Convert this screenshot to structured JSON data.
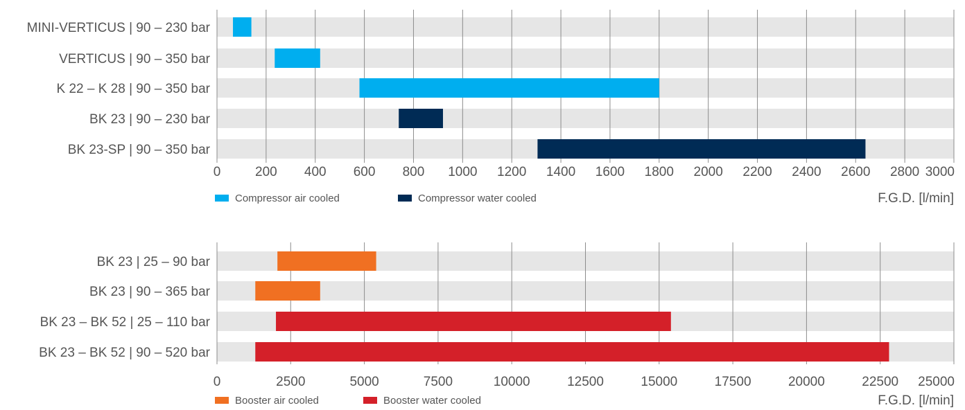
{
  "chart_data": [
    {
      "type": "bar",
      "orientation": "horizontal-range",
      "categories": [
        "MINI-VERTICUS | 90 – 230 bar",
        "VERTICUS | 90 – 350 bar",
        "K 22 – K 28 | 90 – 350 bar",
        "BK 23 | 90 – 230 bar",
        "BK 23-SP | 90 – 350 bar"
      ],
      "bars": [
        {
          "start": 65,
          "end": 140,
          "series": 0
        },
        {
          "start": 235,
          "end": 420,
          "series": 0
        },
        {
          "start": 580,
          "end": 1800,
          "series": 0
        },
        {
          "start": 740,
          "end": 920,
          "series": 1
        },
        {
          "start": 1305,
          "end": 2640,
          "series": 1
        }
      ],
      "series": [
        {
          "name": "Compressor air cooled",
          "color": "#00aeef"
        },
        {
          "name": "Compressor water cooled",
          "color": "#002b55"
        }
      ],
      "xlabel": "F.G.D. [l/min]",
      "xlim": [
        0,
        3000
      ],
      "xticks": [
        0,
        200,
        400,
        600,
        800,
        1000,
        1200,
        1400,
        1600,
        1800,
        2000,
        2200,
        2400,
        2600,
        2800,
        3000
      ],
      "grid": "vertical",
      "legend": "bottom-left"
    },
    {
      "type": "bar",
      "orientation": "horizontal-range",
      "categories": [
        "BK 23 | 25 – 90 bar",
        "BK 23 | 90 – 365 bar",
        "BK 23 – BK 52 | 25 – 110 bar",
        "BK 23 – BK 52 | 90 – 520 bar"
      ],
      "bars": [
        {
          "start": 2050,
          "end": 5400,
          "series": 0
        },
        {
          "start": 1300,
          "end": 3500,
          "series": 0
        },
        {
          "start": 2000,
          "end": 15400,
          "series": 1
        },
        {
          "start": 1300,
          "end": 22800,
          "series": 1
        }
      ],
      "series": [
        {
          "name": "Booster air cooled",
          "color": "#f07022"
        },
        {
          "name": "Booster water cooled",
          "color": "#d42029"
        }
      ],
      "xlabel": "F.G.D. [l/min]",
      "xlim": [
        0,
        25000
      ],
      "xticks": [
        0,
        2500,
        5000,
        7500,
        10000,
        12500,
        15000,
        17500,
        20000,
        22500,
        25000
      ],
      "grid": "vertical",
      "legend": "bottom-left"
    }
  ],
  "colors": {
    "row_background": "#e6e6e6",
    "grid": "#8c8c8c",
    "text": "#555555"
  }
}
